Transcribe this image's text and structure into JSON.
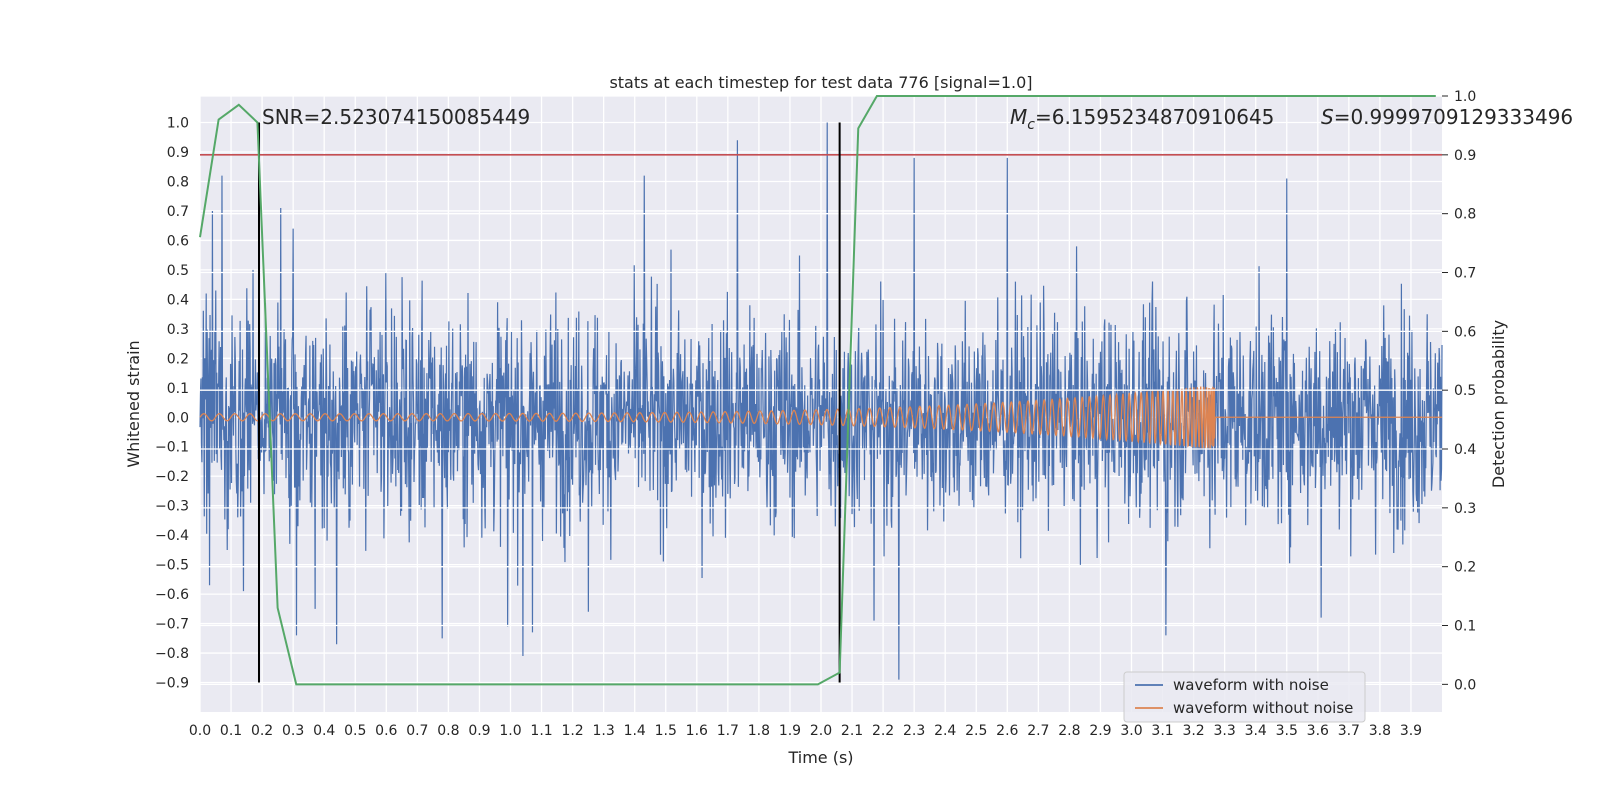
{
  "chart_data": {
    "type": "line",
    "title": "stats at each timestep for test data 776 [signal=1.0]",
    "xlabel": "Time (s)",
    "ylabel_left": "Whitened strain",
    "ylabel_right": "Detection probability",
    "xlim": [
      0.0,
      4.0
    ],
    "ylim_left": [
      -1.0,
      1.09
    ],
    "ylim_right": [
      -0.047,
      1.0
    ],
    "x_ticks": [
      0.0,
      0.1,
      0.2,
      0.3,
      0.4,
      0.5,
      0.6,
      0.7,
      0.8,
      0.9,
      1.0,
      1.1,
      1.2,
      1.3,
      1.4,
      1.5,
      1.6,
      1.7,
      1.8,
      1.9,
      2.0,
      2.1,
      2.2,
      2.3,
      2.4,
      2.5,
      2.6,
      2.7,
      2.8,
      2.9,
      3.0,
      3.1,
      3.2,
      3.3,
      3.4,
      3.5,
      3.6,
      3.7,
      3.8,
      3.9
    ],
    "y_ticks_left": [
      -0.9,
      -0.8,
      -0.7,
      -0.6,
      -0.5,
      -0.4,
      -0.3,
      -0.2,
      -0.1,
      0.0,
      0.1,
      0.2,
      0.3,
      0.4,
      0.5,
      0.6,
      0.7,
      0.8,
      0.9,
      1.0
    ],
    "y_ticks_right": [
      0.0,
      0.1,
      0.2,
      0.3,
      0.4,
      0.5,
      0.6,
      0.7,
      0.8,
      0.9,
      1.0
    ],
    "grid": true,
    "legend_position": "lower-right",
    "annotations": {
      "snr": "SNR=2.523074150085449",
      "mc_symbol": "M",
      "mc_sub": "c",
      "mc_value": "=6.1595234870910645",
      "s_symbol": "S",
      "s_value": "=0.9999709129333496"
    },
    "threshold": {
      "y_right": 0.9,
      "color": "#c44e52"
    },
    "markers_x": [
      0.19,
      2.06
    ],
    "series": [
      {
        "name": "waveform with noise",
        "axis": "left",
        "color": "#4c72b0",
        "approx_amplitude": 0.3,
        "spikes": [
          [
            0.02,
            0.42
          ],
          [
            0.03,
            -0.57
          ],
          [
            0.04,
            0.7
          ],
          [
            0.05,
            0.43
          ],
          [
            0.07,
            0.82
          ],
          [
            0.09,
            -0.38
          ],
          [
            0.14,
            -0.59
          ],
          [
            0.17,
            0.5
          ],
          [
            0.26,
            0.71
          ],
          [
            0.3,
            0.64
          ],
          [
            0.31,
            -0.74
          ],
          [
            0.37,
            -0.65
          ],
          [
            0.44,
            -0.77
          ],
          [
            0.78,
            -0.75
          ],
          [
            0.99,
            -0.71
          ],
          [
            1.04,
            -0.81
          ],
          [
            1.07,
            -0.73
          ],
          [
            1.25,
            -0.66
          ],
          [
            1.43,
            0.82
          ],
          [
            1.73,
            0.94
          ],
          [
            2.02,
            1.0
          ],
          [
            2.17,
            -0.69
          ],
          [
            2.25,
            -0.89
          ],
          [
            2.3,
            0.88
          ],
          [
            2.6,
            0.88
          ],
          [
            3.11,
            -0.74
          ],
          [
            3.5,
            0.81
          ],
          [
            3.61,
            -0.68
          ]
        ]
      },
      {
        "name": "waveform without noise",
        "axis": "left",
        "color": "#dd8452",
        "start_amplitude": 0.012,
        "end_amplitude": 0.11,
        "merger_time": 3.27
      },
      {
        "name": "Detection probability",
        "axis": "right",
        "color": "#55a868",
        "points": [
          [
            0.0,
            0.76
          ],
          [
            0.06,
            0.96
          ],
          [
            0.125,
            0.985
          ],
          [
            0.185,
            0.955
          ],
          [
            0.25,
            0.13
          ],
          [
            0.31,
            0.0
          ],
          [
            1.99,
            0.0
          ],
          [
            2.06,
            0.02
          ],
          [
            2.12,
            0.945
          ],
          [
            2.18,
            1.0
          ],
          [
            3.98,
            1.0
          ]
        ]
      }
    ]
  }
}
